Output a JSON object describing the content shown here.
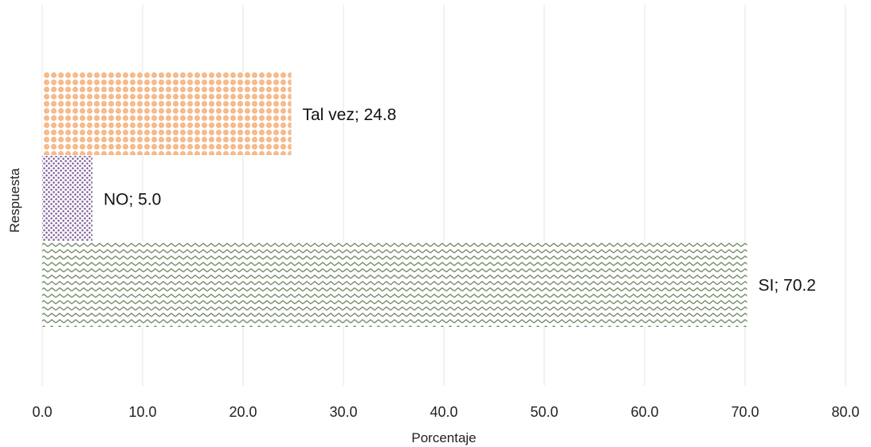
{
  "chart_data": {
    "type": "bar",
    "orientation": "horizontal",
    "categories": [
      "SI",
      "NO",
      "Tal vez"
    ],
    "values": [
      70.2,
      5.0,
      24.8
    ],
    "data_labels": [
      "SI; 70.2",
      "NO; 5.0",
      "Tal vez; 24.8"
    ],
    "bar_colors": [
      "#6f8a62",
      "#7d5a98",
      "#f5bb8c"
    ],
    "bar_patterns": [
      "zigzag",
      "dots",
      "grid-dots"
    ],
    "xlabel": "Porcentaje",
    "ylabel": "Respuesta",
    "xlim": [
      0,
      80
    ],
    "xticks": [
      0,
      10,
      20,
      30,
      40,
      50,
      60,
      70,
      80
    ],
    "xtick_labels": [
      "0.0",
      "10.0",
      "20.0",
      "30.0",
      "40.0",
      "50.0",
      "60.0",
      "70.0",
      "80.0"
    ],
    "grid": true,
    "legend": "none"
  }
}
